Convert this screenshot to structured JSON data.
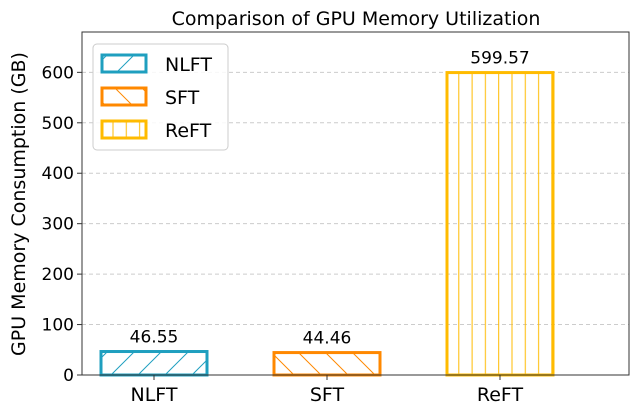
{
  "chart_data": {
    "type": "bar",
    "title": "Comparison of GPU Memory Utilization",
    "xlabel": "",
    "ylabel": "GPU Memory Consumption (GB)",
    "categories": [
      "NLFT",
      "SFT",
      "ReFT"
    ],
    "values": [
      46.55,
      44.46,
      599.57
    ],
    "data_labels": [
      "46.55",
      "44.46",
      "599.57"
    ],
    "colors": [
      "#1f9fbf",
      "#ff8800",
      "#ffbb00"
    ],
    "hatches": [
      "/",
      "\\",
      "|"
    ],
    "ylim": [
      0,
      680
    ],
    "yticks": [
      0,
      100,
      200,
      300,
      400,
      500,
      600
    ],
    "grid": "y-dashed",
    "legend": {
      "position": "top-left",
      "entries": [
        "NLFT",
        "SFT",
        "ReFT"
      ]
    }
  }
}
